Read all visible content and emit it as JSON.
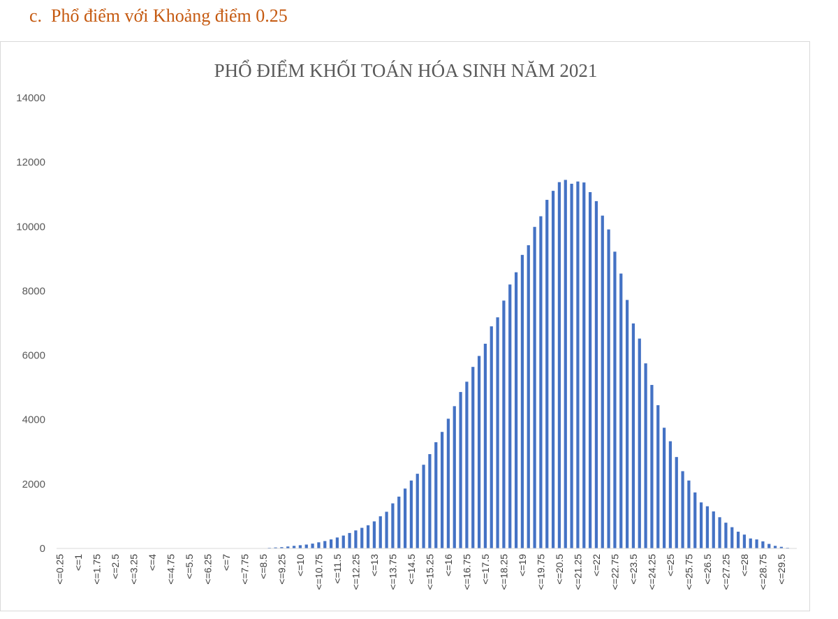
{
  "heading": {
    "label": "c.",
    "text": "Phổ điểm với Khoảng điểm 0.25"
  },
  "colors": {
    "heading": "#c55a11",
    "bar": "#4472c4",
    "axis": "#d9d9d9",
    "text": "#595959"
  },
  "chart_data": {
    "type": "bar",
    "title": "PHỔ ĐIỂM KHỐI TOÁN HÓA SINH NĂM 2021",
    "xlabel": "",
    "ylabel": "",
    "ylim": [
      0,
      14000
    ],
    "yticks": [
      0,
      2000,
      4000,
      6000,
      8000,
      10000,
      12000,
      14000
    ],
    "grid": false,
    "legend": "none",
    "category_prefix": "<=",
    "categories": [
      0.25,
      0.5,
      0.75,
      1,
      1.25,
      1.5,
      1.75,
      2,
      2.25,
      2.5,
      2.75,
      3,
      3.25,
      3.5,
      3.75,
      4,
      4.25,
      4.5,
      4.75,
      5,
      5.25,
      5.5,
      5.75,
      6,
      6.25,
      6.5,
      6.75,
      7,
      7.25,
      7.5,
      7.75,
      8,
      8.25,
      8.5,
      8.75,
      9,
      9.25,
      9.5,
      9.75,
      10,
      10.25,
      10.5,
      10.75,
      11,
      11.25,
      11.5,
      11.75,
      12,
      12.25,
      12.5,
      12.75,
      13,
      13.25,
      13.5,
      13.75,
      14,
      14.25,
      14.5,
      14.75,
      15,
      15.25,
      15.5,
      15.75,
      16,
      16.25,
      16.5,
      16.75,
      17,
      17.25,
      17.5,
      17.75,
      18,
      18.25,
      18.5,
      18.75,
      19,
      19.25,
      19.5,
      19.75,
      20,
      20.25,
      20.5,
      20.75,
      21,
      21.25,
      21.5,
      21.75,
      22,
      22.25,
      22.5,
      22.75,
      23,
      23.25,
      23.5,
      23.75,
      24,
      24.25,
      24.5,
      24.75,
      25,
      25.25,
      25.5,
      25.75,
      26,
      26.25,
      26.5,
      26.75,
      27,
      27.25,
      27.5,
      27.75,
      28,
      28.25,
      28.5,
      28.75,
      29,
      29.25,
      29.5,
      29.75,
      30
    ],
    "visible_tick_labels": [
      "<=0.25",
      "<=1",
      "<=1.75",
      "<=2.5",
      "<=3.25",
      "<=4",
      "<=4.75",
      "<=5.5",
      "<=6.25",
      "<=7",
      "<=7.75",
      "<=8.5",
      "<=9.25",
      "<=10",
      "<=10.75",
      "<=11.5",
      "<=12.25",
      "<=13",
      "<=13.75",
      "<=14.5",
      "<=15.25",
      "<=16",
      "<=16.75",
      "<=17.5",
      "<=18.25",
      "<=19",
      "<=19.75",
      "<=20.5",
      "<=21.25",
      "<=22",
      "<=22.75",
      "<=23.5",
      "<=24.25",
      "<=25",
      "<=25.75",
      "<=26.5",
      "<=27.25",
      "<=28",
      "<=28.75",
      "<=29.5"
    ],
    "values": [
      0,
      0,
      0,
      0,
      0,
      0,
      0,
      0,
      0,
      0,
      0,
      0,
      0,
      0,
      0,
      0,
      0,
      0,
      0,
      0,
      0,
      0,
      0,
      0,
      0,
      0,
      0,
      0,
      0,
      0,
      0,
      0,
      0,
      10,
      20,
      30,
      40,
      60,
      80,
      100,
      120,
      150,
      190,
      230,
      280,
      340,
      400,
      480,
      560,
      640,
      720,
      840,
      1000,
      1140,
      1400,
      1610,
      1860,
      2110,
      2320,
      2600,
      2930,
      3300,
      3620,
      4030,
      4420,
      4860,
      5180,
      5640,
      5980,
      6360,
      6900,
      7180,
      7700,
      8200,
      8580,
      9120,
      9420,
      9990,
      10320,
      10830,
      11110,
      11380,
      11450,
      11330,
      11400,
      11370,
      11070,
      10790,
      10340,
      9910,
      9220,
      8540,
      7720,
      6990,
      6520,
      5750,
      5080,
      4450,
      3750,
      3330,
      2840,
      2400,
      2110,
      1740,
      1430,
      1310,
      1150,
      970,
      800,
      660,
      520,
      430,
      310,
      280,
      220,
      140,
      80,
      50,
      20,
      0
    ]
  }
}
